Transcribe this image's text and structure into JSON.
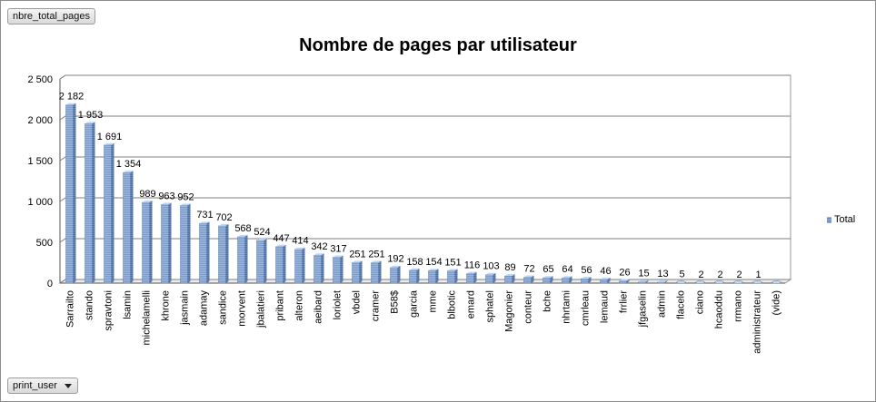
{
  "field_buttons": {
    "data_field": "nbre_total_pages",
    "row_field": "print_user"
  },
  "colors": {
    "bar_front": "#8aaad2",
    "bar_side": "#5878a8",
    "bar_top": "#c4d6ec",
    "grid": "#7f7f7f"
  },
  "icons": {
    "row_field_dropdown": "chevron-down-icon"
  },
  "chart_data": {
    "type": "bar",
    "title": "Nombre de pages par utilisateur",
    "xlabel": "",
    "ylabel": "",
    "ylim": [
      0,
      2500
    ],
    "yticks": [
      "0",
      "500",
      "1 000",
      "1 500",
      "2 000",
      "2 500"
    ],
    "ytick_values": [
      0,
      500,
      1000,
      1500,
      2000,
      2500
    ],
    "grid": true,
    "legend_position": "right",
    "categories": [
      "Sarrailto",
      "stando",
      "spravtoni",
      "lsamin",
      "michelamelli",
      "khrone",
      "jasmain",
      "adamay",
      "sandice",
      "morvent",
      "jbalatieri",
      "pribant",
      "alteron",
      "aeibard",
      "loriolet",
      "vbdel",
      "cramer",
      "B58$",
      "garcia",
      "mme",
      "blbotic",
      "emard",
      "sphatel",
      "Magonier",
      "conteur",
      "bche",
      "nhrtami",
      "cmrleau",
      "lemaud",
      "frrlier",
      "jfgaselin",
      "admin",
      "flacelo",
      "ciano",
      "hcaoddu",
      "rrmano",
      "administrateur",
      "(vide)"
    ],
    "values": [
      2182,
      1953,
      1691,
      1354,
      989,
      963,
      952,
      731,
      702,
      568,
      524,
      447,
      414,
      342,
      317,
      251,
      251,
      192,
      158,
      154,
      151,
      116,
      103,
      89,
      72,
      65,
      64,
      56,
      46,
      26,
      15,
      13,
      5,
      2,
      2,
      2,
      1,
      0
    ],
    "data_labels": [
      "2 182",
      "1 953",
      "1 691",
      "1 354",
      "989",
      "963",
      "952",
      "731",
      "702",
      "568",
      "524",
      "447",
      "414",
      "342",
      "317",
      "251",
      "251",
      "192",
      "158",
      "154",
      "151",
      "116",
      "103",
      "89",
      "72",
      "65",
      "64",
      "56",
      "46",
      "26",
      "15",
      "13",
      "5",
      "2",
      "2",
      "2",
      "1",
      ""
    ],
    "series": [
      {
        "name": "Total"
      }
    ]
  }
}
